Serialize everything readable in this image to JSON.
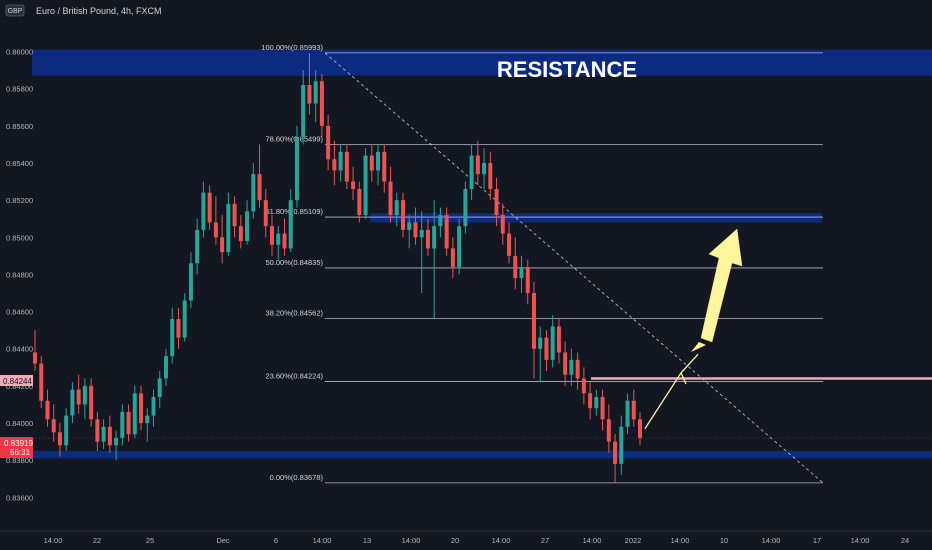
{
  "header": {
    "currency_badge": "GBP",
    "symbol_title": "Euro / British Pound, 4h, FXCM"
  },
  "annotations": {
    "resistance_label": "RESISTANCE"
  },
  "colors": {
    "background": "#131722",
    "up_candle": "#26a69a",
    "down_candle": "#ef5350",
    "zone": "#0d2c8a",
    "fib_line": "#d1d4dc",
    "trend_line": "#d1d4dc",
    "target_line": "#f4a9b8",
    "forecast_arrow": "#fff59d",
    "price_tag": "#f23645"
  },
  "price_tags": {
    "last_price": "0.83919",
    "countdown": "56:31",
    "marker_price": "0.84244"
  },
  "chart_data": {
    "type": "candlestick",
    "title": "Euro / British Pound, 4h, FXCM",
    "ylim": [
      0.835,
      0.8615
    ],
    "y_ticks": [
      "0.86000",
      "0.85800",
      "0.85600",
      "0.85400",
      "0.85200",
      "0.85000",
      "0.84800",
      "0.84600",
      "0.84400",
      "0.84200",
      "0.84000",
      "0.83800",
      "0.83600"
    ],
    "x_ticks": [
      "14:00",
      "22",
      "25",
      "Dec",
      "6",
      "14:00",
      "13",
      "14:00",
      "20",
      "14:00",
      "27",
      "14:00",
      "2022",
      "14:00",
      "10",
      "14:00",
      "17",
      "14:00",
      "24"
    ],
    "grid": false,
    "fibonacci": [
      {
        "label": "100.00%(0.85993)",
        "price": 0.85993
      },
      {
        "label": "78.60%(0.85499)",
        "price": 0.85499
      },
      {
        "label": "61.80%(0.85109)",
        "price": 0.85109
      },
      {
        "label": "50.00%(0.84835)",
        "price": 0.84835
      },
      {
        "label": "38.20%(0.84562)",
        "price": 0.84562
      },
      {
        "label": "23.60%(0.84224)",
        "price": 0.84224
      },
      {
        "label": "0.00%(0.83678)",
        "price": 0.83678
      }
    ],
    "zones": [
      {
        "label": "RESISTANCE",
        "from": 0.8587,
        "to": 0.8601
      },
      {
        "label": "",
        "from": 0.8508,
        "to": 0.8513
      },
      {
        "label": "",
        "from": 0.8381,
        "to": 0.8385
      }
    ],
    "target_level": 0.8424,
    "forecast_points": [
      {
        "x_tick": "2022",
        "price": 0.8397
      },
      {
        "x_tick": "14:00",
        "price": 0.8427
      },
      {
        "x_tick": "14:00",
        "price": 0.8437
      },
      {
        "x_tick": "10",
        "price": 0.851
      }
    ],
    "candles": [
      {
        "o": 0.8438,
        "h": 0.845,
        "l": 0.8428,
        "c": 0.8432
      },
      {
        "o": 0.8432,
        "h": 0.8436,
        "l": 0.8408,
        "c": 0.8412
      },
      {
        "o": 0.8412,
        "h": 0.8418,
        "l": 0.8398,
        "c": 0.8402
      },
      {
        "o": 0.8402,
        "h": 0.841,
        "l": 0.839,
        "c": 0.8395
      },
      {
        "o": 0.8395,
        "h": 0.84,
        "l": 0.8382,
        "c": 0.8388
      },
      {
        "o": 0.8388,
        "h": 0.8408,
        "l": 0.8385,
        "c": 0.8404
      },
      {
        "o": 0.8404,
        "h": 0.8422,
        "l": 0.84,
        "c": 0.8418
      },
      {
        "o": 0.8418,
        "h": 0.8426,
        "l": 0.8405,
        "c": 0.841
      },
      {
        "o": 0.841,
        "h": 0.8424,
        "l": 0.8402,
        "c": 0.842
      },
      {
        "o": 0.842,
        "h": 0.8424,
        "l": 0.8398,
        "c": 0.8402
      },
      {
        "o": 0.8402,
        "h": 0.8406,
        "l": 0.8385,
        "c": 0.839
      },
      {
        "o": 0.839,
        "h": 0.8402,
        "l": 0.8386,
        "c": 0.8398
      },
      {
        "o": 0.8398,
        "h": 0.8404,
        "l": 0.8384,
        "c": 0.8388
      },
      {
        "o": 0.8388,
        "h": 0.8396,
        "l": 0.838,
        "c": 0.8392
      },
      {
        "o": 0.8392,
        "h": 0.841,
        "l": 0.8388,
        "c": 0.8406
      },
      {
        "o": 0.8406,
        "h": 0.841,
        "l": 0.839,
        "c": 0.8394
      },
      {
        "o": 0.8394,
        "h": 0.842,
        "l": 0.8392,
        "c": 0.8416
      },
      {
        "o": 0.8416,
        "h": 0.842,
        "l": 0.8396,
        "c": 0.84
      },
      {
        "o": 0.84,
        "h": 0.8408,
        "l": 0.839,
        "c": 0.8404
      },
      {
        "o": 0.8404,
        "h": 0.8418,
        "l": 0.8398,
        "c": 0.8414
      },
      {
        "o": 0.8414,
        "h": 0.8428,
        "l": 0.8408,
        "c": 0.8424
      },
      {
        "o": 0.8424,
        "h": 0.844,
        "l": 0.842,
        "c": 0.8436
      },
      {
        "o": 0.8436,
        "h": 0.8462,
        "l": 0.8432,
        "c": 0.8456
      },
      {
        "o": 0.8456,
        "h": 0.8462,
        "l": 0.844,
        "c": 0.8446
      },
      {
        "o": 0.8446,
        "h": 0.847,
        "l": 0.8444,
        "c": 0.8466
      },
      {
        "o": 0.8466,
        "h": 0.8492,
        "l": 0.8462,
        "c": 0.8486
      },
      {
        "o": 0.8486,
        "h": 0.851,
        "l": 0.848,
        "c": 0.8504
      },
      {
        "o": 0.8504,
        "h": 0.853,
        "l": 0.85,
        "c": 0.8524
      },
      {
        "o": 0.8524,
        "h": 0.8528,
        "l": 0.8504,
        "c": 0.8508
      },
      {
        "o": 0.8508,
        "h": 0.8522,
        "l": 0.8496,
        "c": 0.85
      },
      {
        "o": 0.85,
        "h": 0.8512,
        "l": 0.8486,
        "c": 0.8492
      },
      {
        "o": 0.8492,
        "h": 0.8524,
        "l": 0.849,
        "c": 0.8518
      },
      {
        "o": 0.8518,
        "h": 0.8522,
        "l": 0.85,
        "c": 0.8506
      },
      {
        "o": 0.8506,
        "h": 0.8512,
        "l": 0.8494,
        "c": 0.8498
      },
      {
        "o": 0.8498,
        "h": 0.852,
        "l": 0.8496,
        "c": 0.8514
      },
      {
        "o": 0.8514,
        "h": 0.854,
        "l": 0.851,
        "c": 0.8534
      },
      {
        "o": 0.8534,
        "h": 0.855,
        "l": 0.8516,
        "c": 0.852
      },
      {
        "o": 0.852,
        "h": 0.8526,
        "l": 0.85,
        "c": 0.8506
      },
      {
        "o": 0.8506,
        "h": 0.8512,
        "l": 0.849,
        "c": 0.8496
      },
      {
        "o": 0.8496,
        "h": 0.8506,
        "l": 0.8488,
        "c": 0.8502
      },
      {
        "o": 0.8502,
        "h": 0.851,
        "l": 0.849,
        "c": 0.8494
      },
      {
        "o": 0.8494,
        "h": 0.8526,
        "l": 0.8492,
        "c": 0.852
      },
      {
        "o": 0.852,
        "h": 0.856,
        "l": 0.8516,
        "c": 0.8554
      },
      {
        "o": 0.8554,
        "h": 0.859,
        "l": 0.855,
        "c": 0.8582
      },
      {
        "o": 0.8582,
        "h": 0.8599,
        "l": 0.8566,
        "c": 0.8572
      },
      {
        "o": 0.8572,
        "h": 0.859,
        "l": 0.8562,
        "c": 0.8584
      },
      {
        "o": 0.8584,
        "h": 0.8588,
        "l": 0.8554,
        "c": 0.856
      },
      {
        "o": 0.856,
        "h": 0.8566,
        "l": 0.8536,
        "c": 0.8542
      },
      {
        "o": 0.8542,
        "h": 0.8552,
        "l": 0.8528,
        "c": 0.8536
      },
      {
        "o": 0.8536,
        "h": 0.855,
        "l": 0.853,
        "c": 0.8546
      },
      {
        "o": 0.8546,
        "h": 0.855,
        "l": 0.8526,
        "c": 0.853
      },
      {
        "o": 0.853,
        "h": 0.8538,
        "l": 0.852,
        "c": 0.8526
      },
      {
        "o": 0.8526,
        "h": 0.853,
        "l": 0.8508,
        "c": 0.8512
      },
      {
        "o": 0.8512,
        "h": 0.8548,
        "l": 0.851,
        "c": 0.8544
      },
      {
        "o": 0.8544,
        "h": 0.855,
        "l": 0.853,
        "c": 0.8536
      },
      {
        "o": 0.8536,
        "h": 0.855,
        "l": 0.8528,
        "c": 0.8546
      },
      {
        "o": 0.8546,
        "h": 0.855,
        "l": 0.8524,
        "c": 0.853
      },
      {
        "o": 0.853,
        "h": 0.8538,
        "l": 0.8508,
        "c": 0.8512
      },
      {
        "o": 0.8512,
        "h": 0.8524,
        "l": 0.8506,
        "c": 0.852
      },
      {
        "o": 0.852,
        "h": 0.8524,
        "l": 0.85,
        "c": 0.8504
      },
      {
        "o": 0.8504,
        "h": 0.8512,
        "l": 0.8494,
        "c": 0.8508
      },
      {
        "o": 0.8508,
        "h": 0.8516,
        "l": 0.8496,
        "c": 0.85
      },
      {
        "o": 0.85,
        "h": 0.8514,
        "l": 0.847,
        "c": 0.8504
      },
      {
        "o": 0.8504,
        "h": 0.851,
        "l": 0.849,
        "c": 0.8494
      },
      {
        "o": 0.8494,
        "h": 0.852,
        "l": 0.8456,
        "c": 0.8506
      },
      {
        "o": 0.8506,
        "h": 0.8516,
        "l": 0.85,
        "c": 0.8512
      },
      {
        "o": 0.8512,
        "h": 0.8516,
        "l": 0.849,
        "c": 0.8494
      },
      {
        "o": 0.8494,
        "h": 0.85,
        "l": 0.8478,
        "c": 0.8484
      },
      {
        "o": 0.8484,
        "h": 0.851,
        "l": 0.848,
        "c": 0.8506
      },
      {
        "o": 0.8506,
        "h": 0.853,
        "l": 0.8502,
        "c": 0.8526
      },
      {
        "o": 0.8526,
        "h": 0.855,
        "l": 0.852,
        "c": 0.8544
      },
      {
        "o": 0.8544,
        "h": 0.8552,
        "l": 0.8528,
        "c": 0.8534
      },
      {
        "o": 0.8534,
        "h": 0.8548,
        "l": 0.8526,
        "c": 0.854
      },
      {
        "o": 0.854,
        "h": 0.8546,
        "l": 0.852,
        "c": 0.8526
      },
      {
        "o": 0.8526,
        "h": 0.8532,
        "l": 0.8506,
        "c": 0.8512
      },
      {
        "o": 0.8512,
        "h": 0.8518,
        "l": 0.8496,
        "c": 0.8502
      },
      {
        "o": 0.8502,
        "h": 0.8508,
        "l": 0.8486,
        "c": 0.849
      },
      {
        "o": 0.849,
        "h": 0.85,
        "l": 0.8472,
        "c": 0.8478
      },
      {
        "o": 0.8478,
        "h": 0.849,
        "l": 0.847,
        "c": 0.8484
      },
      {
        "o": 0.8484,
        "h": 0.8488,
        "l": 0.8464,
        "c": 0.847
      },
      {
        "o": 0.847,
        "h": 0.8476,
        "l": 0.8424,
        "c": 0.844
      },
      {
        "o": 0.844,
        "h": 0.8452,
        "l": 0.8422,
        "c": 0.8446
      },
      {
        "o": 0.8446,
        "h": 0.845,
        "l": 0.8428,
        "c": 0.8434
      },
      {
        "o": 0.8434,
        "h": 0.8458,
        "l": 0.843,
        "c": 0.8452
      },
      {
        "o": 0.8452,
        "h": 0.8456,
        "l": 0.8432,
        "c": 0.8438
      },
      {
        "o": 0.8438,
        "h": 0.8444,
        "l": 0.842,
        "c": 0.8426
      },
      {
        "o": 0.8426,
        "h": 0.844,
        "l": 0.842,
        "c": 0.8434
      },
      {
        "o": 0.8434,
        "h": 0.8438,
        "l": 0.8418,
        "c": 0.8424
      },
      {
        "o": 0.8424,
        "h": 0.843,
        "l": 0.841,
        "c": 0.8416
      },
      {
        "o": 0.8416,
        "h": 0.8422,
        "l": 0.8402,
        "c": 0.8408
      },
      {
        "o": 0.8408,
        "h": 0.8418,
        "l": 0.8404,
        "c": 0.8414
      },
      {
        "o": 0.8414,
        "h": 0.8418,
        "l": 0.8396,
        "c": 0.8402
      },
      {
        "o": 0.8402,
        "h": 0.841,
        "l": 0.8384,
        "c": 0.839
      },
      {
        "o": 0.839,
        "h": 0.8394,
        "l": 0.8368,
        "c": 0.8378
      },
      {
        "o": 0.8378,
        "h": 0.8404,
        "l": 0.8372,
        "c": 0.8398
      },
      {
        "o": 0.8398,
        "h": 0.8416,
        "l": 0.8394,
        "c": 0.8412
      },
      {
        "o": 0.8412,
        "h": 0.8418,
        "l": 0.8398,
        "c": 0.8402
      },
      {
        "o": 0.8402,
        "h": 0.8406,
        "l": 0.8388,
        "c": 0.8392
      }
    ]
  }
}
